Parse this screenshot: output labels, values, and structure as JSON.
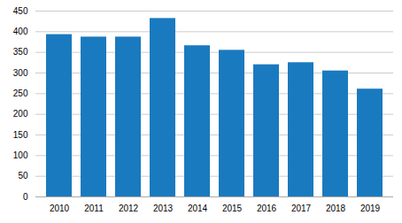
{
  "chart_data": {
    "type": "bar",
    "categories": [
      "2010",
      "2011",
      "2012",
      "2013",
      "2014",
      "2015",
      "2016",
      "2017",
      "2018",
      "2019"
    ],
    "values": [
      393,
      387,
      387,
      432,
      366,
      355,
      320,
      325,
      305,
      261
    ],
    "color": "#1a7abf",
    "ylim": [
      0,
      450
    ],
    "yticks": [
      0,
      50,
      100,
      150,
      200,
      250,
      300,
      350,
      400,
      450
    ],
    "grid": true
  }
}
